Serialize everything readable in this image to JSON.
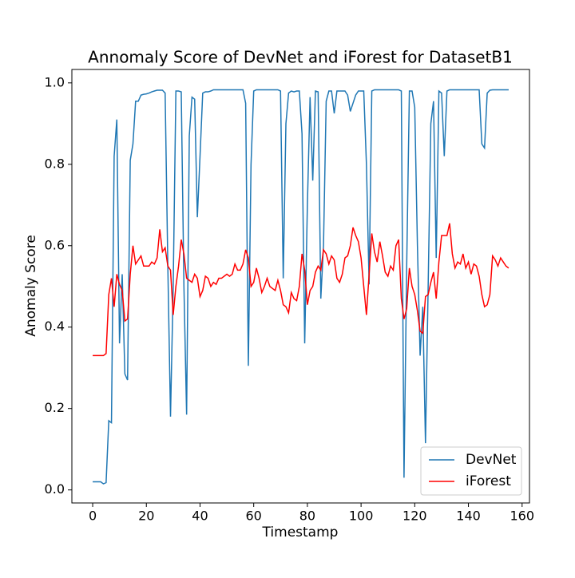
{
  "chart_data": {
    "type": "line",
    "title": "Annomaly Score of DevNet and iForest for DatasetB1",
    "x_label": "Timestamp",
    "y_label": "Anomaly Score",
    "x": [
      0,
      1,
      2,
      3,
      4,
      5,
      6,
      7,
      8,
      9,
      10,
      11,
      12,
      13,
      14,
      15,
      16,
      17,
      18,
      19,
      20,
      21,
      22,
      23,
      24,
      25,
      26,
      27,
      28,
      29,
      30,
      31,
      32,
      33,
      34,
      35,
      36,
      37,
      38,
      39,
      40,
      41,
      42,
      43,
      44,
      45,
      46,
      47,
      48,
      49,
      50,
      51,
      52,
      53,
      54,
      55,
      56,
      57,
      58,
      59,
      60,
      61,
      62,
      63,
      64,
      65,
      66,
      67,
      68,
      69,
      70,
      71,
      72,
      73,
      74,
      75,
      76,
      77,
      78,
      79,
      80,
      81,
      82,
      83,
      84,
      85,
      86,
      87,
      88,
      89,
      90,
      91,
      92,
      93,
      94,
      95,
      96,
      97,
      98,
      99,
      100,
      101,
      102,
      103,
      104,
      105,
      106,
      107,
      108,
      109,
      110,
      111,
      112,
      113,
      114,
      115,
      116,
      117,
      118,
      119,
      120,
      121,
      122,
      123,
      124,
      125,
      126,
      127,
      128,
      129,
      130,
      131,
      132,
      133,
      134,
      135,
      136,
      137,
      138,
      139,
      140,
      141,
      142,
      143,
      144,
      145,
      146,
      147,
      148,
      149,
      150,
      151,
      152,
      153,
      154,
      155
    ],
    "series": [
      {
        "name": "DevNet",
        "color": "#1f77b4",
        "values": [
          0.02,
          0.02,
          0.02,
          0.02,
          0.015,
          0.018,
          0.17,
          0.165,
          0.82,
          0.91,
          0.36,
          0.53,
          0.285,
          0.27,
          0.81,
          0.85,
          0.955,
          0.955,
          0.97,
          0.972,
          0.973,
          0.975,
          0.978,
          0.98,
          0.982,
          0.982,
          0.982,
          0.975,
          0.55,
          0.18,
          0.5,
          0.98,
          0.98,
          0.978,
          0.5,
          0.185,
          0.87,
          0.965,
          0.96,
          0.67,
          0.82,
          0.975,
          0.978,
          0.978,
          0.98,
          0.983,
          0.983,
          0.983,
          0.983,
          0.983,
          0.983,
          0.983,
          0.983,
          0.983,
          0.983,
          0.983,
          0.983,
          0.95,
          0.305,
          0.8,
          0.98,
          0.983,
          0.983,
          0.983,
          0.983,
          0.983,
          0.983,
          0.983,
          0.983,
          0.983,
          0.98,
          0.52,
          0.9,
          0.975,
          0.98,
          0.978,
          0.98,
          0.98,
          0.875,
          0.36,
          0.7,
          0.965,
          0.76,
          0.98,
          0.978,
          0.47,
          0.6,
          0.955,
          0.98,
          0.98,
          0.925,
          0.98,
          0.98,
          0.98,
          0.98,
          0.97,
          0.93,
          0.95,
          0.97,
          0.98,
          0.98,
          0.98,
          0.8,
          0.505,
          0.98,
          0.983,
          0.983,
          0.983,
          0.983,
          0.983,
          0.983,
          0.983,
          0.983,
          0.983,
          0.983,
          0.98,
          0.03,
          0.55,
          0.98,
          0.98,
          0.94,
          0.6,
          0.33,
          0.45,
          0.115,
          0.5,
          0.9,
          0.955,
          0.57,
          0.98,
          0.975,
          0.82,
          0.98,
          0.983,
          0.983,
          0.983,
          0.983,
          0.983,
          0.983,
          0.983,
          0.983,
          0.983,
          0.983,
          0.983,
          0.983,
          0.85,
          0.84,
          0.975,
          0.982,
          0.983,
          0.983,
          0.983,
          0.983,
          0.983,
          0.983,
          0.983
        ]
      },
      {
        "name": "iForest",
        "color": "#ff0000",
        "values": [
          0.33,
          0.33,
          0.33,
          0.33,
          0.33,
          0.335,
          0.48,
          0.52,
          0.45,
          0.53,
          0.505,
          0.49,
          0.415,
          0.42,
          0.53,
          0.6,
          0.555,
          0.565,
          0.575,
          0.55,
          0.55,
          0.55,
          0.56,
          0.555,
          0.57,
          0.64,
          0.585,
          0.595,
          0.55,
          0.54,
          0.43,
          0.5,
          0.55,
          0.615,
          0.58,
          0.52,
          0.515,
          0.51,
          0.53,
          0.52,
          0.475,
          0.49,
          0.525,
          0.52,
          0.5,
          0.51,
          0.505,
          0.52,
          0.52,
          0.525,
          0.53,
          0.525,
          0.53,
          0.555,
          0.54,
          0.54,
          0.555,
          0.59,
          0.57,
          0.5,
          0.51,
          0.545,
          0.52,
          0.485,
          0.5,
          0.52,
          0.5,
          0.495,
          0.49,
          0.515,
          0.49,
          0.455,
          0.45,
          0.435,
          0.485,
          0.47,
          0.465,
          0.5,
          0.58,
          0.54,
          0.455,
          0.49,
          0.5,
          0.535,
          0.55,
          0.54,
          0.59,
          0.58,
          0.555,
          0.575,
          0.565,
          0.52,
          0.51,
          0.53,
          0.57,
          0.575,
          0.6,
          0.645,
          0.625,
          0.61,
          0.57,
          0.5,
          0.43,
          0.53,
          0.63,
          0.585,
          0.56,
          0.61,
          0.575,
          0.535,
          0.525,
          0.55,
          0.54,
          0.6,
          0.615,
          0.47,
          0.42,
          0.445,
          0.545,
          0.5,
          0.48,
          0.44,
          0.39,
          0.385,
          0.475,
          0.48,
          0.51,
          0.535,
          0.47,
          0.56,
          0.625,
          0.625,
          0.625,
          0.655,
          0.58,
          0.545,
          0.56,
          0.555,
          0.58,
          0.545,
          0.56,
          0.53,
          0.555,
          0.55,
          0.525,
          0.48,
          0.45,
          0.455,
          0.48,
          0.575,
          0.565,
          0.55,
          0.57,
          0.56,
          0.55,
          0.545
        ]
      }
    ],
    "xlim": [
      -7.75,
      162.75
    ],
    "ylim": [
      -0.032,
      1.033
    ],
    "xticks": [
      0,
      20,
      40,
      60,
      80,
      100,
      120,
      140,
      160
    ],
    "yticks": [
      {
        "value": 0,
        "label": "0.0"
      },
      {
        "value": 0.2,
        "label": "0.2"
      },
      {
        "value": 0.4,
        "label": "0.4"
      },
      {
        "value": 0.6,
        "label": "0.6"
      },
      {
        "value": 0.8,
        "label": "0.8"
      },
      {
        "value": 1,
        "label": "1.0"
      }
    ],
    "legend": "lower right"
  }
}
